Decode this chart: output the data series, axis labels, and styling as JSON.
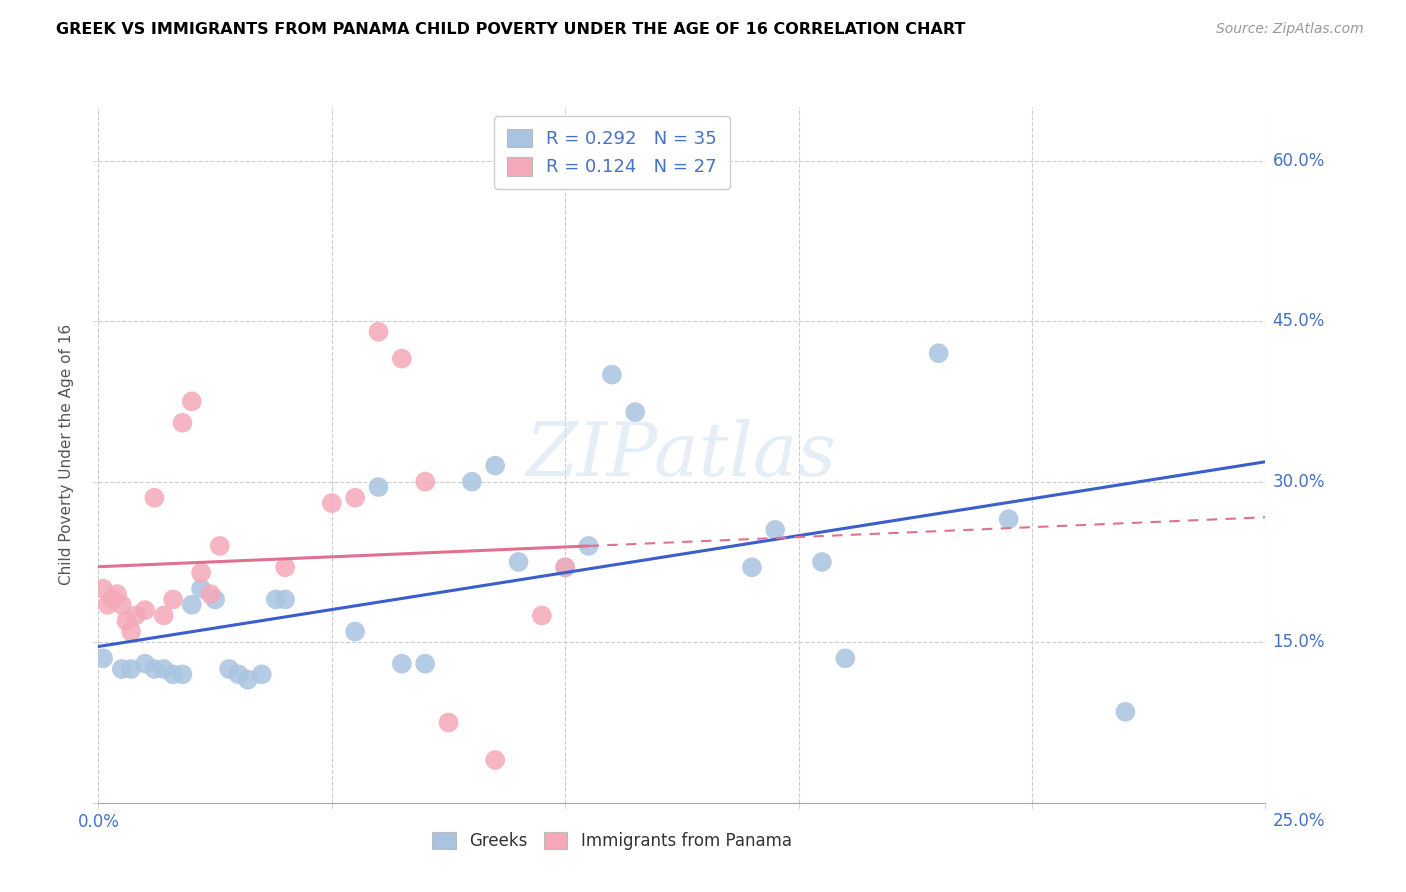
{
  "title": "GREEK VS IMMIGRANTS FROM PANAMA CHILD POVERTY UNDER THE AGE OF 16 CORRELATION CHART",
  "source": "Source: ZipAtlas.com",
  "ylabel": "Child Poverty Under the Age of 16",
  "watermark": "ZIPatlas",
  "xlim": [
    0.0,
    0.25
  ],
  "ylim": [
    0.0,
    0.65
  ],
  "x_ticks": [
    0.0,
    0.05,
    0.1,
    0.15,
    0.2,
    0.25
  ],
  "y_ticks": [
    0.0,
    0.15,
    0.3,
    0.45,
    0.6
  ],
  "greek_R": 0.292,
  "greek_N": 35,
  "panama_R": 0.124,
  "panama_N": 27,
  "blue_scatter_color": "#a8c4e0",
  "pink_scatter_color": "#f4a8b8",
  "blue_line_color": "#3a5fcd",
  "pink_line_color": "#e07090",
  "label_color": "#4472c4",
  "greeks_x": [
    0.001,
    0.005,
    0.007,
    0.01,
    0.012,
    0.014,
    0.016,
    0.018,
    0.02,
    0.022,
    0.025,
    0.028,
    0.03,
    0.032,
    0.035,
    0.038,
    0.04,
    0.055,
    0.06,
    0.065,
    0.07,
    0.08,
    0.085,
    0.09,
    0.1,
    0.105,
    0.11,
    0.115,
    0.14,
    0.145,
    0.155,
    0.16,
    0.18,
    0.195,
    0.22
  ],
  "greeks_y": [
    0.135,
    0.125,
    0.125,
    0.13,
    0.125,
    0.125,
    0.12,
    0.12,
    0.185,
    0.2,
    0.19,
    0.125,
    0.12,
    0.115,
    0.12,
    0.19,
    0.19,
    0.16,
    0.295,
    0.13,
    0.13,
    0.3,
    0.315,
    0.225,
    0.22,
    0.24,
    0.4,
    0.365,
    0.22,
    0.255,
    0.225,
    0.135,
    0.42,
    0.265,
    0.085
  ],
  "panama_x": [
    0.001,
    0.002,
    0.003,
    0.004,
    0.005,
    0.006,
    0.007,
    0.008,
    0.01,
    0.012,
    0.014,
    0.016,
    0.018,
    0.02,
    0.022,
    0.024,
    0.026,
    0.04,
    0.05,
    0.055,
    0.06,
    0.065,
    0.07,
    0.075,
    0.085,
    0.095,
    0.1
  ],
  "panama_y": [
    0.2,
    0.185,
    0.19,
    0.195,
    0.185,
    0.17,
    0.16,
    0.175,
    0.18,
    0.285,
    0.175,
    0.19,
    0.355,
    0.375,
    0.215,
    0.195,
    0.24,
    0.22,
    0.28,
    0.285,
    0.44,
    0.415,
    0.3,
    0.075,
    0.04,
    0.175,
    0.22
  ]
}
